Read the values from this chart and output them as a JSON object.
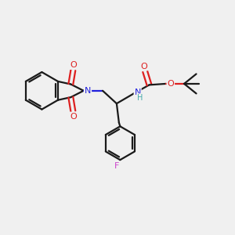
{
  "bg_color": "#f0f0f0",
  "bond_color": "#1a1a1a",
  "N_color": "#2020dd",
  "O_color": "#dd2020",
  "F_color": "#cc44cc",
  "H_color": "#44aaaa",
  "lw": 1.6,
  "doff": 0.09,
  "xlim": [
    0,
    10
  ],
  "ylim": [
    0,
    10
  ]
}
